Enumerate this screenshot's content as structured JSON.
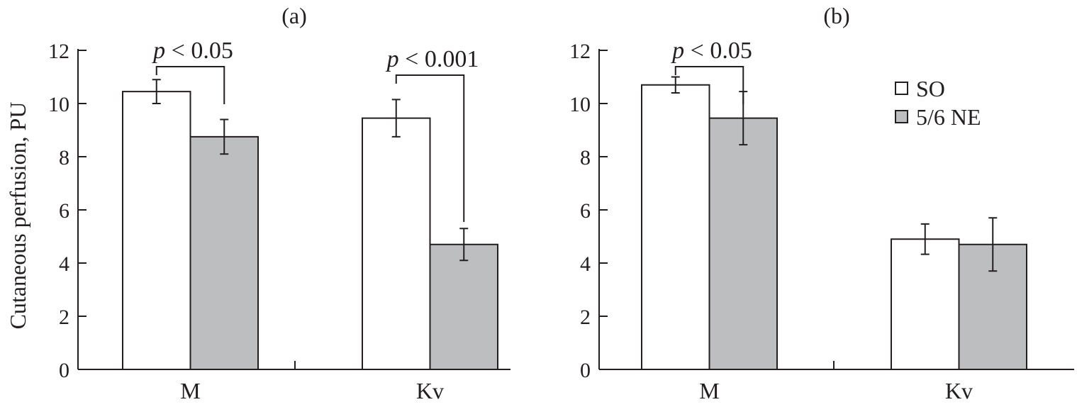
{
  "chart_data": [
    {
      "type": "bar",
      "title": "(a)",
      "ylabel": "Cutaneous perfusion, PU",
      "xlabel": "",
      "ylim": [
        0,
        12
      ],
      "yticks": [
        "0",
        "2",
        "4",
        "6",
        "8",
        "10",
        "12"
      ],
      "categories": [
        "M",
        "Kv"
      ],
      "series": [
        {
          "name": "SO",
          "values": [
            10.45,
            9.45
          ],
          "errors": [
            0.45,
            0.7
          ]
        },
        {
          "name": "5/6 NE",
          "values": [
            8.75,
            4.7
          ],
          "errors": [
            0.65,
            0.6
          ]
        }
      ],
      "annotations": [
        {
          "category": "M",
          "text_p": "p",
          "text_rest": " < 0.05"
        },
        {
          "category": "Kv",
          "text_p": "p",
          "text_rest": " < 0.001"
        }
      ]
    },
    {
      "type": "bar",
      "title": "(b)",
      "ylabel": "",
      "xlabel": "",
      "ylim": [
        0,
        12
      ],
      "yticks": [
        "0",
        "2",
        "4",
        "6",
        "8",
        "10",
        "12"
      ],
      "categories": [
        "M",
        "Kv"
      ],
      "series": [
        {
          "name": "SO",
          "values": [
            10.7,
            4.9
          ],
          "errors": [
            0.3,
            0.57
          ]
        },
        {
          "name": "5/6 NE",
          "values": [
            9.45,
            4.7
          ],
          "errors": [
            1.0,
            1.0
          ]
        }
      ],
      "annotations": [
        {
          "category": "M",
          "text_p": "p",
          "text_rest": " < 0.05"
        }
      ],
      "legend": {
        "position": "top-right",
        "entries": [
          "SO",
          "5/6 NE"
        ]
      }
    }
  ],
  "colors": {
    "SO": "#ffffff",
    "5/6 NE": "#bcbec0",
    "ink": "#231f20"
  }
}
